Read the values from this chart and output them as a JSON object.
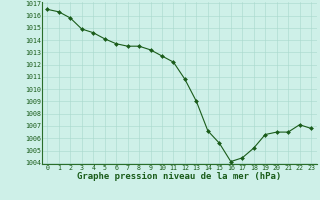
{
  "x": [
    0,
    1,
    2,
    3,
    4,
    5,
    6,
    7,
    8,
    9,
    10,
    11,
    12,
    13,
    14,
    15,
    16,
    17,
    18,
    19,
    20,
    21,
    22,
    23
  ],
  "y": [
    1016.5,
    1016.3,
    1015.8,
    1014.9,
    1014.6,
    1014.1,
    1013.7,
    1013.5,
    1013.5,
    1013.2,
    1012.7,
    1012.2,
    1010.8,
    1009.0,
    1006.6,
    1005.6,
    1004.1,
    1004.4,
    1005.2,
    1006.3,
    1006.5,
    1006.5,
    1007.1,
    1006.8
  ],
  "ylim": [
    1004,
    1017
  ],
  "xlim": [
    -0.5,
    23.5
  ],
  "yticks": [
    1004,
    1005,
    1006,
    1007,
    1008,
    1009,
    1010,
    1011,
    1012,
    1013,
    1014,
    1015,
    1016,
    1017
  ],
  "xticks": [
    0,
    1,
    2,
    3,
    4,
    5,
    6,
    7,
    8,
    9,
    10,
    11,
    12,
    13,
    14,
    15,
    16,
    17,
    18,
    19,
    20,
    21,
    22,
    23
  ],
  "xlabel": "Graphe pression niveau de la mer (hPa)",
  "line_color": "#1a5c1a",
  "marker": "D",
  "marker_size": 2.0,
  "bg_color": "#cef0e8",
  "grid_color": "#a8d8cc",
  "tick_fontsize": 4.8,
  "xlabel_fontsize": 6.5,
  "xlabel_fontweight": "bold",
  "border_color": "#2a6e2a",
  "linewidth": 0.8
}
